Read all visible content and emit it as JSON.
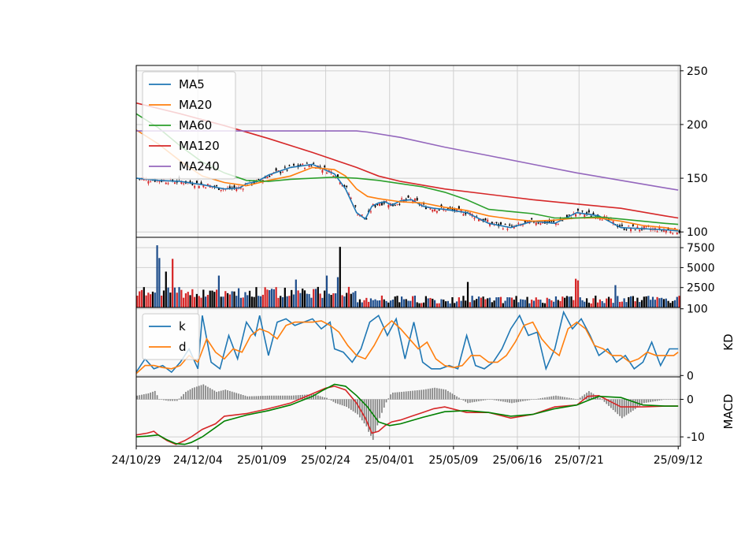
{
  "chart_data": {
    "type": "line",
    "panels": [
      {
        "name": "price",
        "ylim": [
          95,
          255
        ],
        "yticks": [
          100,
          150,
          200,
          250
        ],
        "grid": true,
        "legend_placement": "top-left",
        "legend": [
          "MA5",
          "MA20",
          "MA60",
          "MA120",
          "MA240"
        ],
        "series": [
          {
            "name": "MA5",
            "color": "#1f77b4",
            "x": [
              0,
              10,
              20,
              30,
              40,
              47,
              50,
              55,
              60,
              70,
              80,
              90,
              95,
              100,
              104,
              107,
              110,
              113,
              116,
              120,
              125,
              130,
              135,
              140,
              150,
              160,
              170,
              180,
              190,
              200,
              210,
              220,
              230,
              240,
              246
            ],
            "y": [
              150,
              148,
              147,
              144,
              140,
              141,
              145,
              147,
              153,
              160,
              163,
              154,
              140,
              118,
              112,
              124,
              127,
              128,
              125,
              129,
              130,
              124,
              122,
              121,
              118,
              108,
              104,
              110,
              108,
              118,
              115,
              104,
              103,
              102,
              101
            ]
          },
          {
            "name": "MA20",
            "color": "#ff7f0e",
            "x": [
              0,
              10,
              20,
              30,
              40,
              50,
              60,
              70,
              80,
              90,
              95,
              100,
              105,
              110,
              120,
              130,
              140,
              150,
              160,
              170,
              180,
              190,
              200,
              210,
              220,
              230,
              240,
              246
            ],
            "y": [
              195,
              182,
              166,
              152,
              146,
              143,
              148,
              152,
              160,
              158,
              152,
              140,
              133,
              131,
              128,
              127,
              123,
              120,
              115,
              112,
              110,
              111,
              113,
              113,
              110,
              106,
              104,
              102
            ]
          },
          {
            "name": "MA60",
            "color": "#2ca02c",
            "x": [
              0,
              10,
              20,
              30,
              40,
              50,
              60,
              70,
              80,
              90,
              100,
              110,
              120,
              130,
              140,
              150,
              160,
              170,
              180,
              190,
              200,
              210,
              220,
              230,
              240,
              246
            ],
            "y": [
              210,
              197,
              180,
              165,
              155,
              148,
              147,
              149,
              150,
              151,
              150,
              148,
              145,
              142,
              137,
              130,
              121,
              119,
              117,
              113,
              113,
              114,
              112,
              110,
              108,
              107
            ]
          },
          {
            "name": "MA120",
            "color": "#d62728",
            "x": [
              0,
              20,
              40,
              60,
              80,
              100,
              110,
              120,
              140,
              160,
              180,
              200,
              220,
              240,
              246
            ],
            "y": [
              220,
              210,
              199,
              187,
              174,
              160,
              152,
              147,
              140,
              135,
              130,
              126,
              122,
              115,
              113
            ]
          },
          {
            "name": "MA240",
            "color": "#9467bd",
            "x": [
              0,
              20,
              40,
              60,
              80,
              100,
              105,
              120,
              140,
              160,
              180,
              200,
              220,
              240,
              246
            ],
            "y": [
              194,
              194,
              194,
              194,
              194,
              194,
              193,
              188,
              179,
              171,
              163,
              155,
              148,
              141,
              139
            ]
          }
        ]
      },
      {
        "name": "volume",
        "type": "bar",
        "ylim": [
          0,
          8800
        ],
        "yticks": [
          2500,
          5000,
          7500
        ],
        "grid": true,
        "spikes": [
          {
            "x": 9,
            "v": 7800
          },
          {
            "x": 10,
            "v": 6200
          },
          {
            "x": 13,
            "v": 4500
          },
          {
            "x": 16,
            "v": 6100
          },
          {
            "x": 37,
            "v": 4000
          },
          {
            "x": 92,
            "v": 7600
          },
          {
            "x": 91,
            "v": 3800
          },
          {
            "x": 86,
            "v": 4000
          },
          {
            "x": 72,
            "v": 3500
          },
          {
            "x": 150,
            "v": 3200
          },
          {
            "x": 199,
            "v": 3600
          },
          {
            "x": 200,
            "v": 3400
          },
          {
            "x": 217,
            "v": 2800
          }
        ]
      },
      {
        "name": "KD",
        "ylabel": "KD",
        "ylim": [
          -2,
          102
        ],
        "yticks": [
          0,
          100
        ],
        "grid": true,
        "legend_placement": "top-left",
        "legend": [
          "k",
          "d"
        ],
        "series": [
          {
            "name": "k",
            "color": "#1f77b4",
            "x": [
              0,
              4,
              8,
              12,
              16,
              20,
              24,
              28,
              30,
              34,
              38,
              42,
              46,
              50,
              54,
              56,
              60,
              64,
              68,
              72,
              76,
              80,
              84,
              88,
              90,
              94,
              98,
              102,
              106,
              110,
              114,
              118,
              122,
              126,
              130,
              134,
              138,
              142,
              146,
              150,
              154,
              158,
              162,
              166,
              170,
              174,
              178,
              182,
              186,
              190,
              194,
              198,
              202,
              206,
              210,
              214,
              218,
              222,
              226,
              230,
              234,
              238,
              242,
              246
            ],
            "y": [
              5,
              25,
              10,
              15,
              5,
              20,
              40,
              10,
              90,
              20,
              10,
              60,
              25,
              80,
              60,
              90,
              30,
              80,
              85,
              75,
              80,
              85,
              70,
              80,
              40,
              35,
              20,
              40,
              80,
              90,
              60,
              85,
              25,
              80,
              20,
              10,
              10,
              15,
              10,
              60,
              15,
              10,
              20,
              40,
              70,
              90,
              60,
              65,
              10,
              40,
              95,
              70,
              85,
              60,
              30,
              40,
              20,
              30,
              10,
              20,
              50,
              15,
              40,
              40
            ]
          },
          {
            "name": "d",
            "color": "#ff7f0e",
            "x": [
              0,
              4,
              8,
              12,
              16,
              20,
              24,
              28,
              32,
              36,
              40,
              44,
              48,
              52,
              56,
              60,
              64,
              68,
              72,
              76,
              80,
              84,
              88,
              92,
              96,
              100,
              104,
              108,
              112,
              116,
              120,
              124,
              128,
              132,
              136,
              140,
              144,
              148,
              152,
              156,
              160,
              164,
              168,
              172,
              176,
              180,
              184,
              188,
              192,
              196,
              200,
              204,
              208,
              212,
              216,
              220,
              224,
              228,
              232,
              236,
              240,
              244,
              246
            ],
            "y": [
              3,
              15,
              15,
              12,
              10,
              15,
              30,
              20,
              55,
              35,
              25,
              40,
              35,
              60,
              70,
              65,
              55,
              75,
              80,
              80,
              80,
              82,
              75,
              65,
              45,
              30,
              25,
              45,
              70,
              82,
              70,
              55,
              40,
              50,
              25,
              15,
              12,
              15,
              30,
              30,
              20,
              20,
              30,
              50,
              75,
              80,
              55,
              40,
              30,
              70,
              80,
              70,
              45,
              40,
              30,
              30,
              20,
              25,
              35,
              30,
              30,
              30,
              35
            ]
          }
        ]
      },
      {
        "name": "MACD",
        "ylabel": "MACD",
        "ylim": [
          -12.5,
          6
        ],
        "yticks": [
          -10,
          0
        ],
        "grid": true,
        "series": [
          {
            "name": "",
            "color": "#d62728",
            "x": [
              0,
              5,
              8,
              10,
              14,
              18,
              22,
              25,
              30,
              36,
              40,
              50,
              60,
              70,
              80,
              86,
              90,
              95,
              100,
              104,
              107,
              110,
              113,
              116,
              120,
              125,
              130,
              135,
              140,
              150,
              160,
              170,
              180,
              190,
              200,
              205,
              210,
              220,
              230,
              240,
              246
            ],
            "y": [
              -9.5,
              -9,
              -8.5,
              -9.5,
              -11,
              -12,
              -11,
              -10,
              -8,
              -6.5,
              -4.5,
              -3.8,
              -2.5,
              -1,
              1.5,
              3,
              3.5,
              2.5,
              -1,
              -5,
              -9,
              -8.5,
              -7,
              -6,
              -5.5,
              -4.5,
              -3.5,
              -2.5,
              -2,
              -3.5,
              -3.5,
              -5,
              -4,
              -2,
              -1.5,
              0.8,
              1,
              -2,
              -2,
              -1.8,
              -1.8
            ]
          },
          {
            "name": "",
            "color": "#008000",
            "x": [
              0,
              5,
              10,
              14,
              18,
              22,
              25,
              30,
              36,
              40,
              50,
              60,
              70,
              80,
              85,
              90,
              95,
              100,
              105,
              110,
              115,
              120,
              130,
              140,
              150,
              160,
              170,
              180,
              190,
              200,
              205,
              210,
              220,
              230,
              240,
              246
            ],
            "y": [
              -10,
              -9.8,
              -9.5,
              -10.8,
              -11.8,
              -12,
              -11.5,
              -10,
              -7.5,
              -5.8,
              -4.2,
              -3,
              -1.5,
              0.8,
              2.5,
              4,
              3.5,
              1,
              -2,
              -6,
              -7,
              -6.5,
              -4.8,
              -3.3,
              -3,
              -3.5,
              -4.5,
              -4,
              -2.5,
              -1.5,
              -0.3,
              0.8,
              0.5,
              -1.5,
              -1.8,
              -1.8
            ]
          }
        ],
        "histogram_color": "#808080"
      }
    ],
    "x_tick_labels": [
      {
        "x": 0,
        "label": "24/10/29"
      },
      {
        "x": 28,
        "label": "24/12/04"
      },
      {
        "x": 57,
        "label": "25/01/09"
      },
      {
        "x": 86,
        "label": "25/02/24"
      },
      {
        "x": 115,
        "label": "25/04/01"
      },
      {
        "x": 144,
        "label": "25/05/09"
      },
      {
        "x": 173,
        "label": "25/06/16"
      },
      {
        "x": 201,
        "label": "25/07/21"
      },
      {
        "x": 246,
        "label": "25/09/12"
      }
    ],
    "xlim": [
      0,
      247
    ],
    "up_color": "#d62728",
    "down_color": "#000000",
    "vol_color": "#1f4e8c",
    "background": "#f9f9f9"
  }
}
